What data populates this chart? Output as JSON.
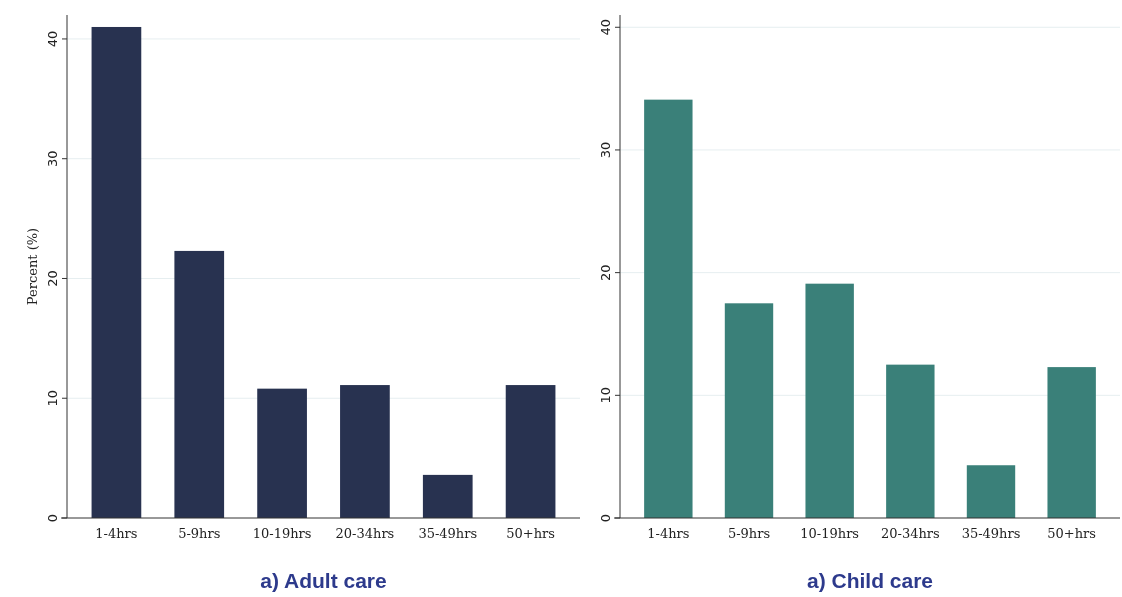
{
  "chart_data": [
    {
      "type": "bar",
      "title": "a) Adult care",
      "ylabel": "Percent (%)",
      "categories": [
        "1-4hrs",
        "5-9hrs",
        "10-19hrs",
        "20-34hrs",
        "35-49hrs",
        "50+hrs"
      ],
      "values": [
        41.0,
        22.3,
        10.8,
        11.1,
        3.6,
        11.1
      ],
      "color": "#283250",
      "ylim": [
        0,
        42
      ],
      "yticks": [
        0,
        10,
        20,
        30,
        40
      ],
      "grid": "y"
    },
    {
      "type": "bar",
      "title": "a) Child care",
      "categories": [
        "1-4hrs",
        "5-9hrs",
        "10-19hrs",
        "20-34hrs",
        "35-49hrs",
        "50+hrs"
      ],
      "values": [
        34.1,
        17.5,
        19.1,
        12.5,
        4.3,
        12.3
      ],
      "color": "#3a8079",
      "ylim": [
        0,
        41
      ],
      "yticks": [
        0,
        10,
        20,
        30,
        40
      ],
      "grid": "y"
    }
  ]
}
